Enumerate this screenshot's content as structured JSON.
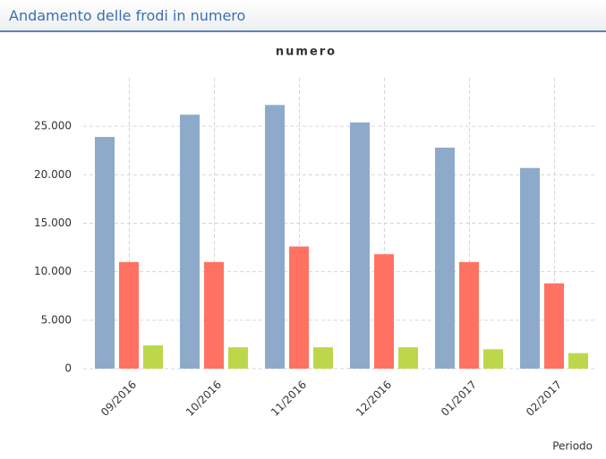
{
  "header": {
    "title": "Andamento delle frodi in numero"
  },
  "chart_data": {
    "type": "bar",
    "title": "numero",
    "x_label": "Periodo",
    "categories": [
      "09/2016",
      "10/2016",
      "11/2016",
      "12/2016",
      "01/2017",
      "02/2017"
    ],
    "series": [
      {
        "color": "#8eaacb",
        "values": [
          23900,
          26200,
          27200,
          25400,
          22800,
          20700
        ]
      },
      {
        "color": "#ff7262",
        "values": [
          11000,
          11000,
          12600,
          11800,
          11000,
          8800
        ]
      },
      {
        "color": "#bcd84a",
        "values": [
          2400,
          2200,
          2200,
          2200,
          2000,
          1600
        ]
      }
    ],
    "ylim": [
      0,
      30000
    ],
    "yticks": [
      0,
      {
        "value": 5000,
        "label": "5.000"
      },
      {
        "value": 10000,
        "label": "10.000"
      },
      {
        "value": 15000,
        "label": "15.000"
      },
      {
        "value": 20000,
        "label": "20.000"
      },
      {
        "value": 25000,
        "label": "25.000"
      }
    ],
    "grid": true
  }
}
